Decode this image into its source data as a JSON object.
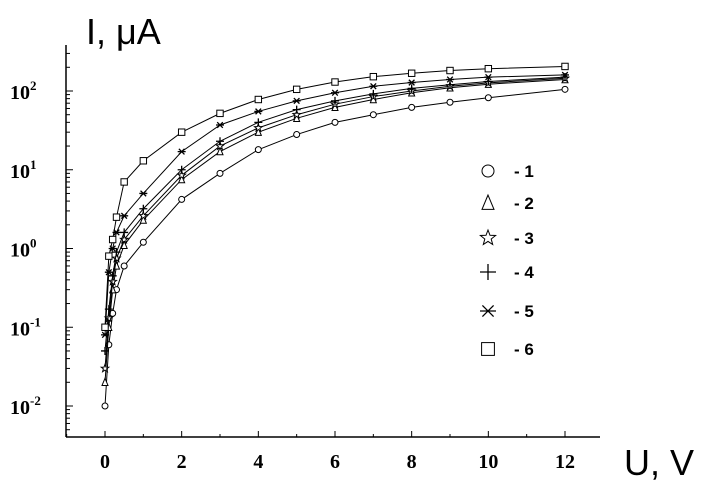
{
  "chart_data": {
    "type": "line",
    "ylabel": "I, μA",
    "xlabel": "U, V",
    "y_scale": "log",
    "xlim": [
      -1,
      12.8
    ],
    "ylim": [
      0.005,
      500
    ],
    "x_ticks": [
      0,
      2,
      4,
      6,
      8,
      10,
      12
    ],
    "x_tick_labels": [
      "0",
      "2",
      "4",
      "6",
      "8",
      "10",
      "12"
    ],
    "y_ticks": [
      {
        "value": 0.01,
        "base": "10",
        "exp": "-2"
      },
      {
        "value": 0.1,
        "base": "10",
        "exp": "-1"
      },
      {
        "value": 1,
        "base": "10",
        "exp": "0"
      },
      {
        "value": 10,
        "base": "10",
        "exp": "1"
      },
      {
        "value": 100,
        "base": "10",
        "exp": "2"
      }
    ],
    "grid": false,
    "legend_position": "right",
    "series": [
      {
        "name": "- 1",
        "marker": "circle",
        "x": [
          0,
          0.1,
          0.2,
          0.3,
          0.5,
          1,
          2,
          3,
          4,
          5,
          6,
          7,
          8,
          9,
          10,
          12
        ],
        "y": [
          0.01,
          0.06,
          0.15,
          0.3,
          0.6,
          1.2,
          4.2,
          9,
          18,
          28,
          40,
          50,
          62,
          72,
          82,
          105
        ]
      },
      {
        "name": "- 2",
        "marker": "triangle",
        "x": [
          0,
          0.1,
          0.2,
          0.3,
          0.5,
          1,
          2,
          3,
          4,
          5,
          6,
          7,
          8,
          9,
          10,
          12
        ],
        "y": [
          0.02,
          0.1,
          0.3,
          0.6,
          1.1,
          2.3,
          7.5,
          17,
          30,
          45,
          62,
          78,
          95,
          110,
          122,
          140
        ]
      },
      {
        "name": "- 3",
        "marker": "star",
        "x": [
          0,
          0.1,
          0.2,
          0.3,
          0.5,
          1,
          2,
          3,
          4,
          5,
          6,
          7,
          8,
          9,
          10,
          12
        ],
        "y": [
          0.03,
          0.13,
          0.38,
          0.75,
          1.3,
          2.6,
          8.5,
          20,
          34,
          50,
          68,
          85,
          100,
          115,
          127,
          145
        ]
      },
      {
        "name": "- 4",
        "marker": "plus",
        "x": [
          0,
          0.1,
          0.2,
          0.3,
          0.5,
          1,
          2,
          3,
          4,
          5,
          6,
          7,
          8,
          9,
          10,
          12
        ],
        "y": [
          0.05,
          0.17,
          0.45,
          0.9,
          1.6,
          3.2,
          10,
          23,
          40,
          58,
          75,
          92,
          108,
          120,
          132,
          150
        ]
      },
      {
        "name": "- 5",
        "marker": "asterisk",
        "x": [
          0,
          0.1,
          0.2,
          0.3,
          0.5,
          1,
          2,
          3,
          4,
          5,
          6,
          7,
          8,
          9,
          10,
          12
        ],
        "y": [
          0.08,
          0.5,
          1.0,
          1.6,
          2.6,
          5,
          17,
          37,
          55,
          75,
          95,
          115,
          128,
          140,
          150,
          160
        ]
      },
      {
        "name": "- 6",
        "marker": "square",
        "x": [
          0,
          0.1,
          0.2,
          0.3,
          0.5,
          1,
          2,
          3,
          4,
          5,
          6,
          7,
          8,
          9,
          10,
          12
        ],
        "y": [
          0.1,
          0.8,
          1.3,
          2.5,
          7,
          13,
          30,
          52,
          78,
          105,
          130,
          152,
          168,
          182,
          192,
          205
        ]
      }
    ]
  }
}
